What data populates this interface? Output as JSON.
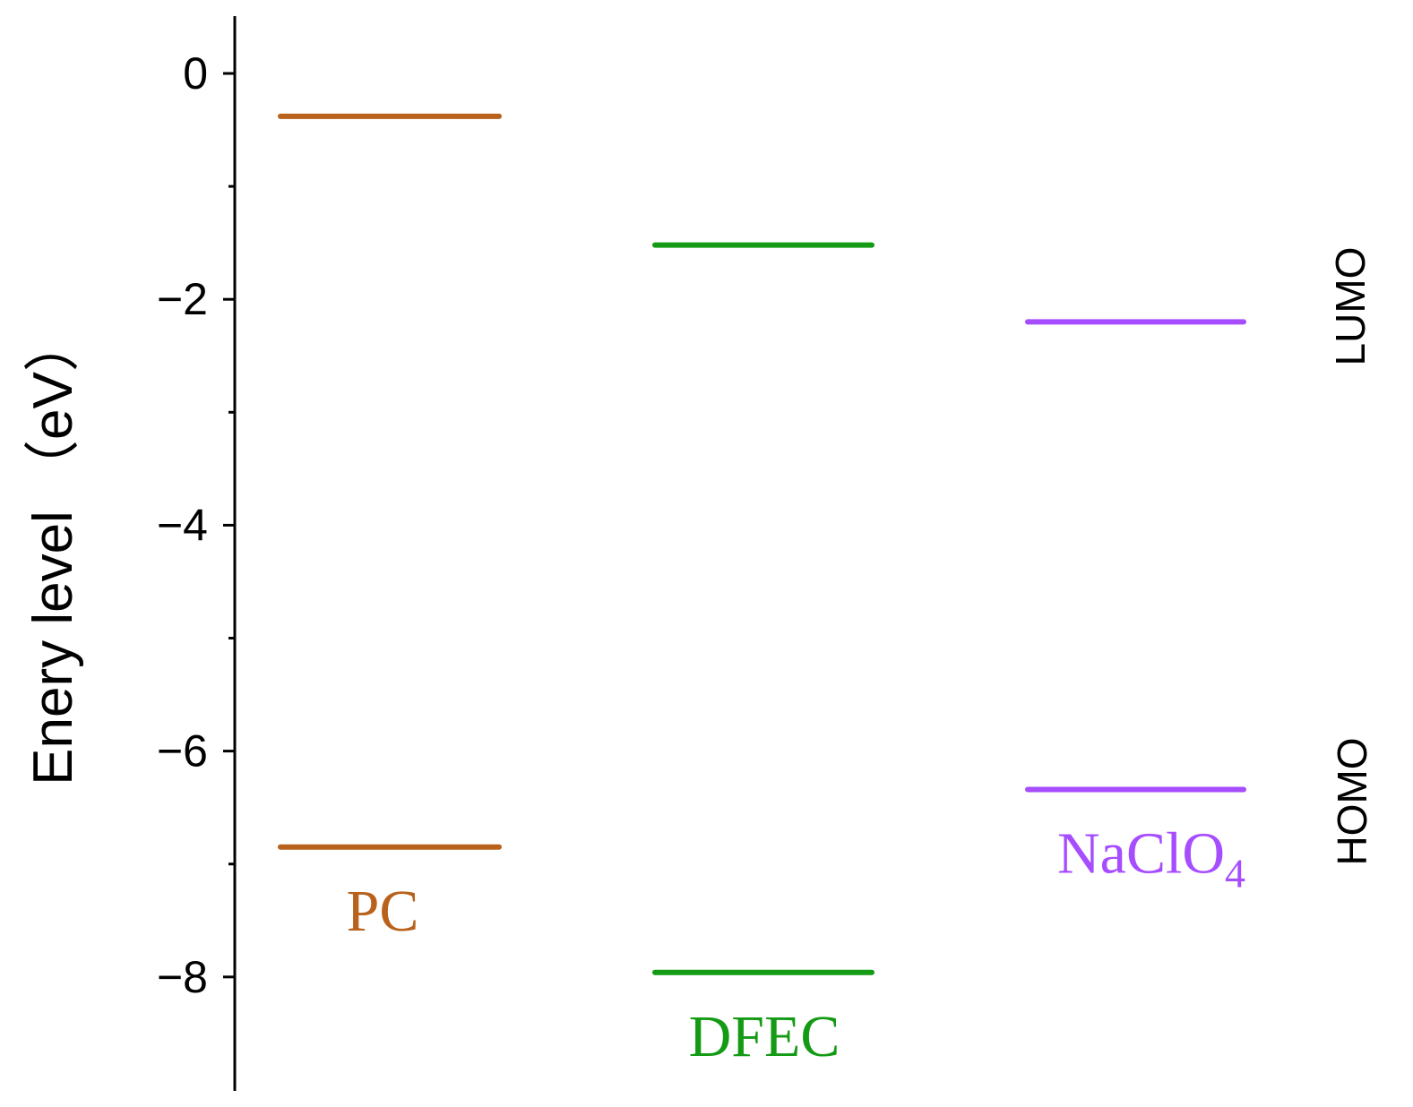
{
  "chart_data": {
    "type": "energy-level diagram",
    "ylabel": "Enery level （eV）",
    "ylim": [
      -9,
      0.5
    ],
    "yticks_major": [
      0,
      -2,
      -4,
      -6,
      -8
    ],
    "yticks_minor": [
      -1,
      -3,
      -5,
      -7
    ],
    "tick_labels": [
      "0",
      "−2",
      "−4",
      "−6",
      "−8"
    ],
    "side_labels": {
      "lumo": "LUMO",
      "homo": "HOMO"
    },
    "series": [
      {
        "name": "PC",
        "name_main": "PC",
        "name_sub": "",
        "color": "#b8621c",
        "lumo": -0.38,
        "homo": -6.85
      },
      {
        "name": "DFEC",
        "name_main": "DFEC",
        "name_sub": "",
        "color": "#149a14",
        "lumo": -1.52,
        "homo": -7.96
      },
      {
        "name": "NaClO4",
        "name_main": "NaClO",
        "name_sub": "4",
        "color": "#a64dff",
        "lumo": -2.2,
        "homo": -6.34
      }
    ],
    "grid": false,
    "legend": "none"
  }
}
